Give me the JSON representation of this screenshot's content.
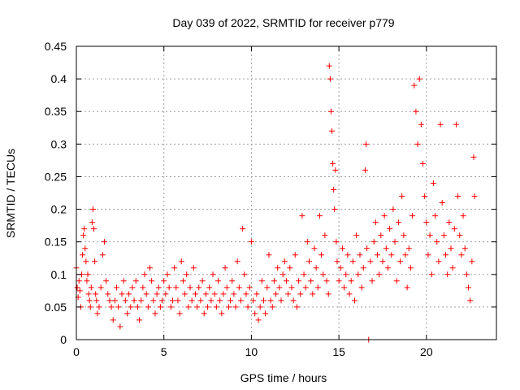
{
  "chart_data": {
    "type": "scatter",
    "title": "Day 039 of 2022, SRMTID for receiver p779",
    "xlabel": "GPS time / hours",
    "ylabel": "SRMTID / TECUs",
    "xlim": [
      0,
      24
    ],
    "ylim": [
      0,
      0.45
    ],
    "x_ticks": [
      0,
      5,
      10,
      15,
      20
    ],
    "x_tick_labels": [
      "0",
      "5",
      "10",
      "15",
      "20"
    ],
    "y_ticks": [
      0,
      0.05,
      0.1,
      0.15,
      0.2,
      0.25,
      0.3,
      0.35,
      0.4,
      0.45
    ],
    "y_tick_labels": [
      "0",
      "0.05",
      "0.1",
      "0.15",
      "0.2",
      "0.25",
      "0.3",
      "0.35",
      "0.4",
      "0.45"
    ],
    "grid": true,
    "marker": "plus",
    "color": "#ff0000",
    "series": [
      {
        "name": "SRMTID",
        "points": [
          [
            0.0,
            0.11
          ],
          [
            0.05,
            0.08
          ],
          [
            0.1,
            0.065
          ],
          [
            0.15,
            0.09
          ],
          [
            0.2,
            0.075
          ],
          [
            0.25,
            0.05
          ],
          [
            0.3,
            0.1
          ],
          [
            0.35,
            0.13
          ],
          [
            0.4,
            0.16
          ],
          [
            0.45,
            0.17
          ],
          [
            0.5,
            0.14
          ],
          [
            0.55,
            0.12
          ],
          [
            0.6,
            0.09
          ],
          [
            0.65,
            0.1
          ],
          [
            0.7,
            0.07
          ],
          [
            0.75,
            0.06
          ],
          [
            0.8,
            0.05
          ],
          [
            0.85,
            0.08
          ],
          [
            0.9,
            0.18
          ],
          [
            0.95,
            0.2
          ],
          [
            1.0,
            0.17
          ],
          [
            1.05,
            0.12
          ],
          [
            1.1,
            0.07
          ],
          [
            1.15,
            0.06
          ],
          [
            1.2,
            0.04
          ],
          [
            1.3,
            0.05
          ],
          [
            1.4,
            0.08
          ],
          [
            1.5,
            0.13
          ],
          [
            1.6,
            0.15
          ],
          [
            1.7,
            0.09
          ],
          [
            1.8,
            0.07
          ],
          [
            1.9,
            0.06
          ],
          [
            2.0,
            0.05
          ],
          [
            2.1,
            0.03
          ],
          [
            2.2,
            0.06
          ],
          [
            2.3,
            0.08
          ],
          [
            2.4,
            0.05
          ],
          [
            2.5,
            0.02
          ],
          [
            2.6,
            0.07
          ],
          [
            2.7,
            0.09
          ],
          [
            2.8,
            0.06
          ],
          [
            2.9,
            0.04
          ],
          [
            3.0,
            0.07
          ],
          [
            3.1,
            0.05
          ],
          [
            3.2,
            0.08
          ],
          [
            3.3,
            0.06
          ],
          [
            3.4,
            0.09
          ],
          [
            3.5,
            0.05
          ],
          [
            3.6,
            0.03
          ],
          [
            3.7,
            0.06
          ],
          [
            3.8,
            0.08
          ],
          [
            3.9,
            0.1
          ],
          [
            4.0,
            0.07
          ],
          [
            4.1,
            0.05
          ],
          [
            4.2,
            0.11
          ],
          [
            4.3,
            0.09
          ],
          [
            4.4,
            0.06
          ],
          [
            4.5,
            0.04
          ],
          [
            4.6,
            0.07
          ],
          [
            4.7,
            0.08
          ],
          [
            4.8,
            0.05
          ],
          [
            4.9,
            0.06
          ],
          [
            5.0,
            0.09
          ],
          [
            5.1,
            0.07
          ],
          [
            5.2,
            0.1
          ],
          [
            5.3,
            0.08
          ],
          [
            5.4,
            0.05
          ],
          [
            5.5,
            0.06
          ],
          [
            5.6,
            0.11
          ],
          [
            5.7,
            0.08
          ],
          [
            5.8,
            0.06
          ],
          [
            5.9,
            0.04
          ],
          [
            6.0,
            0.12
          ],
          [
            6.1,
            0.09
          ],
          [
            6.2,
            0.07
          ],
          [
            6.3,
            0.1
          ],
          [
            6.4,
            0.05
          ],
          [
            6.5,
            0.08
          ],
          [
            6.6,
            0.06
          ],
          [
            6.7,
            0.11
          ],
          [
            6.8,
            0.07
          ],
          [
            6.9,
            0.05
          ],
          [
            7.0,
            0.08
          ],
          [
            7.1,
            0.06
          ],
          [
            7.2,
            0.09
          ],
          [
            7.3,
            0.04
          ],
          [
            7.4,
            0.07
          ],
          [
            7.5,
            0.05
          ],
          [
            7.6,
            0.08
          ],
          [
            7.7,
            0.06
          ],
          [
            7.8,
            0.1
          ],
          [
            7.9,
            0.07
          ],
          [
            8.0,
            0.05
          ],
          [
            8.1,
            0.09
          ],
          [
            8.2,
            0.06
          ],
          [
            8.3,
            0.04
          ],
          [
            8.4,
            0.07
          ],
          [
            8.5,
            0.11
          ],
          [
            8.6,
            0.08
          ],
          [
            8.7,
            0.05
          ],
          [
            8.8,
            0.06
          ],
          [
            8.9,
            0.09
          ],
          [
            9.0,
            0.07
          ],
          [
            9.1,
            0.05
          ],
          [
            9.2,
            0.12
          ],
          [
            9.3,
            0.08
          ],
          [
            9.4,
            0.06
          ],
          [
            9.5,
            0.17
          ],
          [
            9.6,
            0.1
          ],
          [
            9.7,
            0.07
          ],
          [
            9.8,
            0.05
          ],
          [
            9.9,
            0.08
          ],
          [
            10.0,
            0.15
          ],
          [
            10.1,
            0.06
          ],
          [
            10.2,
            0.04
          ],
          [
            10.3,
            0.07
          ],
          [
            10.4,
            0.03
          ],
          [
            10.5,
            0.05
          ],
          [
            10.6,
            0.09
          ],
          [
            10.7,
            0.06
          ],
          [
            10.8,
            0.04
          ],
          [
            10.9,
            0.08
          ],
          [
            11.0,
            0.13
          ],
          [
            11.1,
            0.06
          ],
          [
            11.2,
            0.05
          ],
          [
            11.3,
            0.09
          ],
          [
            11.4,
            0.07
          ],
          [
            11.5,
            0.11
          ],
          [
            11.6,
            0.08
          ],
          [
            11.7,
            0.06
          ],
          [
            11.8,
            0.1
          ],
          [
            11.9,
            0.12
          ],
          [
            12.0,
            0.09
          ],
          [
            12.1,
            0.07
          ],
          [
            12.2,
            0.11
          ],
          [
            12.3,
            0.08
          ],
          [
            12.4,
            0.06
          ],
          [
            12.5,
            0.13
          ],
          [
            12.6,
            0.05
          ],
          [
            12.7,
            0.09
          ],
          [
            12.8,
            0.07
          ],
          [
            12.9,
            0.19
          ],
          [
            13.0,
            0.1
          ],
          [
            13.1,
            0.08
          ],
          [
            13.2,
            0.15
          ],
          [
            13.3,
            0.12
          ],
          [
            13.4,
            0.09
          ],
          [
            13.5,
            0.07
          ],
          [
            13.6,
            0.14
          ],
          [
            13.7,
            0.11
          ],
          [
            13.8,
            0.08
          ],
          [
            13.9,
            0.19
          ],
          [
            14.0,
            0.13
          ],
          [
            14.1,
            0.1
          ],
          [
            14.2,
            0.16
          ],
          [
            14.3,
            0.09
          ],
          [
            14.4,
            0.07
          ],
          [
            14.45,
            0.42
          ],
          [
            14.5,
            0.4
          ],
          [
            14.55,
            0.35
          ],
          [
            14.6,
            0.32
          ],
          [
            14.65,
            0.27
          ],
          [
            14.7,
            0.23
          ],
          [
            14.75,
            0.2
          ],
          [
            14.8,
            0.26
          ],
          [
            14.85,
            0.15
          ],
          [
            14.9,
            0.12
          ],
          [
            15.0,
            0.09
          ],
          [
            15.1,
            0.11
          ],
          [
            15.2,
            0.14
          ],
          [
            15.3,
            0.08
          ],
          [
            15.4,
            0.1
          ],
          [
            15.5,
            0.13
          ],
          [
            15.6,
            0.07
          ],
          [
            15.7,
            0.09
          ],
          [
            15.8,
            0.12
          ],
          [
            15.9,
            0.06
          ],
          [
            16.0,
            0.16
          ],
          [
            16.1,
            0.1
          ],
          [
            16.2,
            0.13
          ],
          [
            16.3,
            0.08
          ],
          [
            16.4,
            0.11
          ],
          [
            16.5,
            0.26
          ],
          [
            16.55,
            0.3
          ],
          [
            16.6,
            0.14
          ],
          [
            16.7,
            0.0
          ],
          [
            16.8,
            0.12
          ],
          [
            16.9,
            0.09
          ],
          [
            17.0,
            0.15
          ],
          [
            17.1,
            0.18
          ],
          [
            17.2,
            0.13
          ],
          [
            17.3,
            0.1
          ],
          [
            17.4,
            0.16
          ],
          [
            17.5,
            0.12
          ],
          [
            17.6,
            0.19
          ],
          [
            17.7,
            0.14
          ],
          [
            17.8,
            0.11
          ],
          [
            17.9,
            0.17
          ],
          [
            18.0,
            0.13
          ],
          [
            18.1,
            0.2
          ],
          [
            18.2,
            0.15
          ],
          [
            18.3,
            0.09
          ],
          [
            18.4,
            0.18
          ],
          [
            18.5,
            0.12
          ],
          [
            18.6,
            0.22
          ],
          [
            18.7,
            0.16
          ],
          [
            18.8,
            0.13
          ],
          [
            18.9,
            0.08
          ],
          [
            19.0,
            0.14
          ],
          [
            19.1,
            0.11
          ],
          [
            19.2,
            0.19
          ],
          [
            19.3,
            0.39
          ],
          [
            19.4,
            0.35
          ],
          [
            19.5,
            0.3
          ],
          [
            19.6,
            0.4
          ],
          [
            19.7,
            0.33
          ],
          [
            19.8,
            0.27
          ],
          [
            19.9,
            0.22
          ],
          [
            20.0,
            0.18
          ],
          [
            20.1,
            0.13
          ],
          [
            20.2,
            0.16
          ],
          [
            20.3,
            0.1
          ],
          [
            20.4,
            0.24
          ],
          [
            20.5,
            0.19
          ],
          [
            20.6,
            0.15
          ],
          [
            20.7,
            0.12
          ],
          [
            20.8,
            0.33
          ],
          [
            20.9,
            0.21
          ],
          [
            21.0,
            0.16
          ],
          [
            21.1,
            0.13
          ],
          [
            21.2,
            0.1
          ],
          [
            21.3,
            0.18
          ],
          [
            21.4,
            0.14
          ],
          [
            21.5,
            0.11
          ],
          [
            21.6,
            0.17
          ],
          [
            21.7,
            0.33
          ],
          [
            21.8,
            0.22
          ],
          [
            21.9,
            0.16
          ],
          [
            22.0,
            0.13
          ],
          [
            22.1,
            0.19
          ],
          [
            22.2,
            0.14
          ],
          [
            22.3,
            0.1
          ],
          [
            22.4,
            0.08
          ],
          [
            22.5,
            0.06
          ],
          [
            22.6,
            0.12
          ],
          [
            22.7,
            0.28
          ],
          [
            22.75,
            0.22
          ]
        ]
      }
    ]
  }
}
